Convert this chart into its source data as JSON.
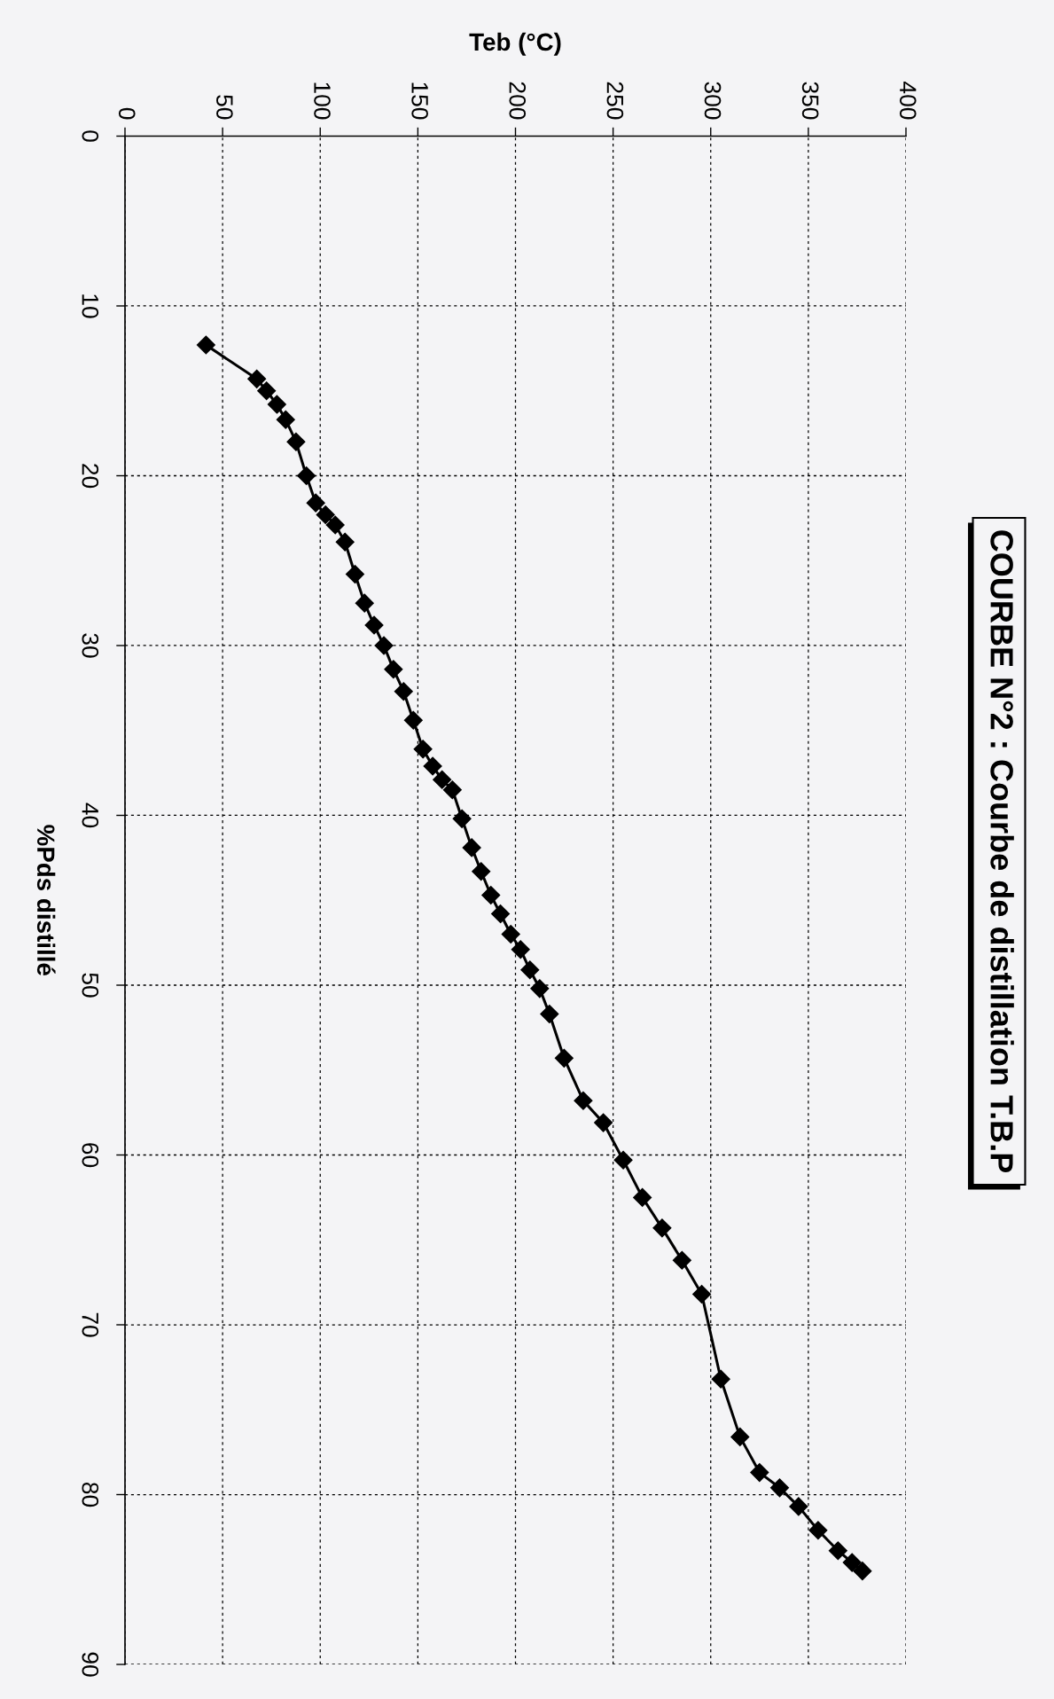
{
  "chart_data": {
    "type": "line",
    "title": "COURBE N°2 : Courbe de distillation T.B.P",
    "xlabel": "Teb (°C)",
    "ylabel": "%Pds distillé",
    "x": [
      41.5,
      67.5,
      72.5,
      77.8,
      82.3,
      87.6,
      92.9,
      97.7,
      102.7,
      107.7,
      112.7,
      117.8,
      122.7,
      127.6,
      132.6,
      137.5,
      142.7,
      147.7,
      152.6,
      157.6,
      162.4,
      167.7,
      172.6,
      177.6,
      182.4,
      187.4,
      192.3,
      197.6,
      202.6,
      207.4,
      212.4,
      217.4,
      224.9,
      234.7,
      245.0,
      255.2,
      265.0,
      275.1,
      285.3,
      295.4,
      305.2,
      315.0,
      325.0,
      335.3,
      345.0,
      355.0,
      365.2,
      372.4,
      377.7
    ],
    "series": [
      {
        "color": "#000000",
        "values": [
          12.3,
          14.3,
          15.0,
          15.8,
          16.7,
          18.0,
          20.0,
          21.6,
          22.3,
          22.9,
          23.9,
          25.8,
          27.5,
          28.8,
          30.0,
          31.4,
          32.7,
          34.4,
          36.1,
          37.1,
          37.9,
          38.5,
          40.2,
          41.9,
          43.3,
          44.7,
          45.8,
          47.0,
          47.9,
          49.1,
          50.2,
          51.7,
          54.3,
          56.8,
          58.1,
          60.3,
          62.5,
          64.3,
          66.2,
          68.2,
          73.2,
          76.6,
          78.7,
          79.6,
          80.7,
          82.1,
          83.3,
          84.0,
          84.5
        ]
      }
    ],
    "xlim": [
      0,
      400
    ],
    "xticks": [
      0,
      50,
      100,
      150,
      200,
      250,
      300,
      350,
      400
    ],
    "ylim": [
      90,
      0
    ],
    "yticks": [
      0,
      10,
      20,
      30,
      40,
      50,
      60,
      70,
      80,
      90
    ],
    "grid": true,
    "marker": "diamond",
    "line_style": "solid"
  }
}
